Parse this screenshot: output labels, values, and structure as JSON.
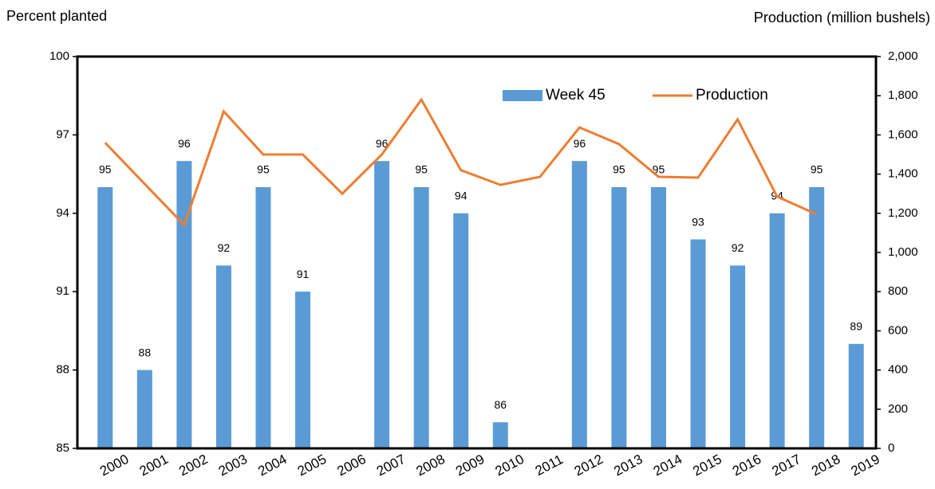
{
  "chart_data": {
    "type": "bar_line",
    "ylabel": "Percent planted",
    "y2label": "Production (million bushels)",
    "categories": [
      "2000",
      "2001",
      "2002",
      "2003",
      "2004",
      "2005",
      "2006",
      "2007",
      "2008",
      "2009",
      "2010",
      "2011",
      "2012",
      "2013",
      "2014",
      "2015",
      "2016",
      "2017",
      "2018",
      "2019"
    ],
    "series": [
      {
        "name": "Week 45",
        "type": "bar",
        "color": "#5b9bd5",
        "values": [
          95,
          88,
          96,
          92,
          95,
          91,
          85,
          96,
          95,
          94,
          86,
          85,
          96,
          95,
          95,
          93,
          92,
          94,
          95,
          89
        ],
        "value_labels": [
          "95",
          "88",
          "96",
          "92",
          "95",
          "91",
          null,
          "96",
          "95",
          "94",
          "86",
          null,
          "96",
          "95",
          "95",
          "93",
          "92",
          "94",
          "95",
          "89"
        ]
      },
      {
        "name": "Production",
        "type": "line",
        "axis": "y2",
        "color": "#ed7d31",
        "values": [
          1560,
          1350,
          1140,
          1720,
          1500,
          1500,
          1300,
          1500,
          1780,
          1420,
          1345,
          1386,
          1638,
          1553,
          1386,
          1382,
          1679,
          1285,
          1195,
          null
        ]
      }
    ],
    "ylim": [
      85,
      100
    ],
    "yticks": [
      85,
      88,
      91,
      94,
      97,
      100
    ],
    "y2lim": [
      0,
      2000
    ],
    "y2ticks": [
      0,
      200,
      400,
      600,
      800,
      {
        "value": 1000,
        "label": "1,000"
      },
      {
        "value": 1200,
        "label": "1,200"
      },
      {
        "value": 1400,
        "label": "1,400"
      },
      {
        "value": 1600,
        "label": "1,600"
      },
      {
        "value": 1800,
        "label": "1,800"
      },
      {
        "value": 2000,
        "label": "2,000"
      }
    ],
    "legend": "top-right"
  }
}
